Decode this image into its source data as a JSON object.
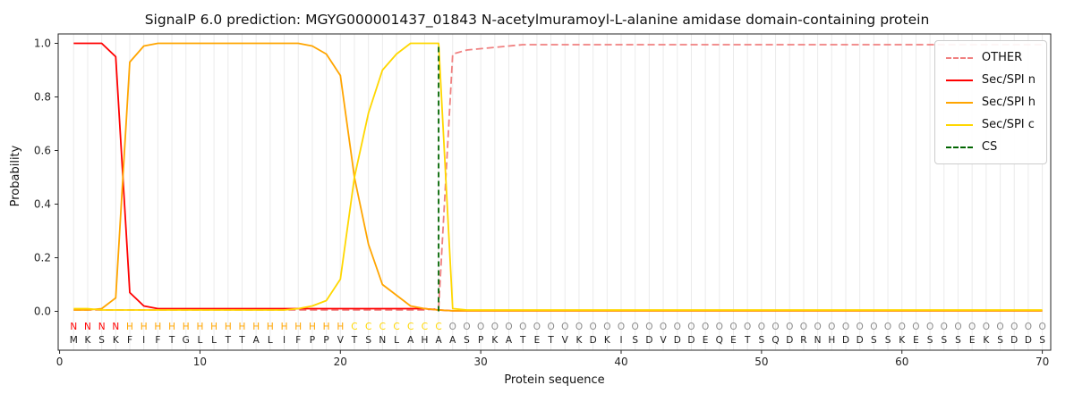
{
  "chart_data": {
    "type": "line",
    "title": "SignalP 6.0 prediction: MGYG000001437_01843 N-acetylmuramoyl-L-alanine amidase domain-containing protein",
    "xlabel": "Protein sequence",
    "ylabel": "Probability",
    "xlim": [
      0,
      70.6
    ],
    "ylim": [
      -0.145,
      1.035
    ],
    "x_ticks": [
      0,
      10,
      20,
      30,
      40,
      50,
      60,
      70
    ],
    "y_ticks": [
      0.0,
      0.2,
      0.4,
      0.6,
      0.8,
      1.0
    ],
    "grid": "vertical gridline at every residue position 1-70",
    "legend_position": "upper right",
    "sequence": "MKSKFIFTGLLTTALIFPPVTSNLAHAASPKATETVKDKISDVDDEQETSQDRNHDDSSKESSSEKSDDS",
    "region_labels": "NNNNHHHHHHHHHHHHHHHHCCCCCCCOOOOOOOOOOOOOOOOOOOOOOOOOOOOOOOOOOOOOOOOOOO",
    "letter_colors": {
      "N": "#ff0000",
      "H": "#ffa500",
      "C": "#ffd700",
      "O": "#8c8c8c"
    },
    "series": [
      {
        "name": "OTHER",
        "key": "other",
        "color": "#f08080",
        "dash": true,
        "values": [
          0.005,
          0.005,
          0.005,
          0.005,
          0.005,
          0.005,
          0.005,
          0.005,
          0.005,
          0.005,
          0.005,
          0.005,
          0.005,
          0.005,
          0.005,
          0.005,
          0.005,
          0.005,
          0.005,
          0.005,
          0.005,
          0.005,
          0.005,
          0.005,
          0.005,
          0.005,
          0.01,
          0.96,
          0.975,
          0.98,
          0.985,
          0.99,
          0.995,
          0.995,
          0.995,
          0.995,
          0.995,
          0.995,
          0.995,
          0.995,
          0.995,
          0.995,
          0.995,
          0.995,
          0.995,
          0.995,
          0.995,
          0.995,
          0.995,
          0.995,
          0.995,
          0.995,
          0.995,
          0.995,
          0.995,
          0.995,
          0.995,
          0.995,
          0.995,
          0.995,
          0.995,
          0.995,
          0.995,
          0.995,
          0.995,
          0.995,
          0.995,
          0.995,
          0.995,
          0.995
        ]
      },
      {
        "name": "Sec/SPI n",
        "key": "sec-spi-n",
        "color": "#ff0000",
        "dash": false,
        "values": [
          1.0,
          1.0,
          1.0,
          0.95,
          0.07,
          0.02,
          0.01,
          0.01,
          0.01,
          0.01,
          0.01,
          0.01,
          0.01,
          0.01,
          0.01,
          0.01,
          0.01,
          0.01,
          0.01,
          0.01,
          0.01,
          0.01,
          0.01,
          0.01,
          0.01,
          0.01,
          0.005,
          0.002,
          0.002,
          0.002,
          0.002,
          0.002,
          0.002,
          0.002,
          0.002,
          0.002,
          0.002,
          0.002,
          0.002,
          0.002,
          0.002,
          0.002,
          0.002,
          0.002,
          0.002,
          0.002,
          0.002,
          0.002,
          0.002,
          0.002,
          0.002,
          0.002,
          0.002,
          0.002,
          0.002,
          0.002,
          0.002,
          0.002,
          0.002,
          0.002,
          0.002,
          0.002,
          0.002,
          0.002,
          0.002,
          0.002,
          0.002,
          0.002,
          0.002,
          0.002
        ]
      },
      {
        "name": "Sec/SPI h",
        "key": "sec-spi-h",
        "color": "#ffa500",
        "dash": false,
        "values": [
          0.005,
          0.005,
          0.01,
          0.05,
          0.93,
          0.99,
          1.0,
          1.0,
          1.0,
          1.0,
          1.0,
          1.0,
          1.0,
          1.0,
          1.0,
          1.0,
          1.0,
          0.99,
          0.96,
          0.88,
          0.5,
          0.25,
          0.1,
          0.06,
          0.02,
          0.01,
          0.005,
          0.002,
          0.002,
          0.002,
          0.002,
          0.002,
          0.002,
          0.002,
          0.002,
          0.002,
          0.002,
          0.002,
          0.002,
          0.002,
          0.002,
          0.002,
          0.002,
          0.002,
          0.002,
          0.002,
          0.002,
          0.002,
          0.002,
          0.002,
          0.002,
          0.002,
          0.002,
          0.002,
          0.002,
          0.002,
          0.002,
          0.002,
          0.002,
          0.002,
          0.002,
          0.002,
          0.002,
          0.002,
          0.002,
          0.002,
          0.002,
          0.002,
          0.002,
          0.002
        ]
      },
      {
        "name": "Sec/SPI c",
        "key": "sec-spi-c",
        "color": "#ffd700",
        "dash": false,
        "values": [
          0.01,
          0.01,
          0.005,
          0.005,
          0.005,
          0.005,
          0.005,
          0.005,
          0.005,
          0.005,
          0.005,
          0.005,
          0.005,
          0.005,
          0.005,
          0.005,
          0.01,
          0.02,
          0.04,
          0.12,
          0.5,
          0.74,
          0.9,
          0.96,
          1.0,
          1.0,
          1.0,
          0.01,
          0.005,
          0.005,
          0.005,
          0.005,
          0.005,
          0.005,
          0.005,
          0.005,
          0.005,
          0.005,
          0.005,
          0.005,
          0.005,
          0.005,
          0.005,
          0.005,
          0.005,
          0.005,
          0.005,
          0.005,
          0.005,
          0.005,
          0.005,
          0.005,
          0.005,
          0.005,
          0.005,
          0.005,
          0.005,
          0.005,
          0.005,
          0.005,
          0.005,
          0.005,
          0.005,
          0.005,
          0.005,
          0.005,
          0.005,
          0.005,
          0.005,
          0.005
        ]
      }
    ],
    "cs_marker": {
      "name": "CS",
      "x": 27,
      "color": "#006400",
      "dash": true
    },
    "legend": [
      {
        "label": "OTHER",
        "color": "#f08080",
        "dash": true
      },
      {
        "label": "Sec/SPI n",
        "color": "#ff0000",
        "dash": false
      },
      {
        "label": "Sec/SPI h",
        "color": "#ffa500",
        "dash": false
      },
      {
        "label": "Sec/SPI c",
        "color": "#ffd700",
        "dash": false
      },
      {
        "label": "CS",
        "color": "#006400",
        "dash": true
      }
    ]
  }
}
